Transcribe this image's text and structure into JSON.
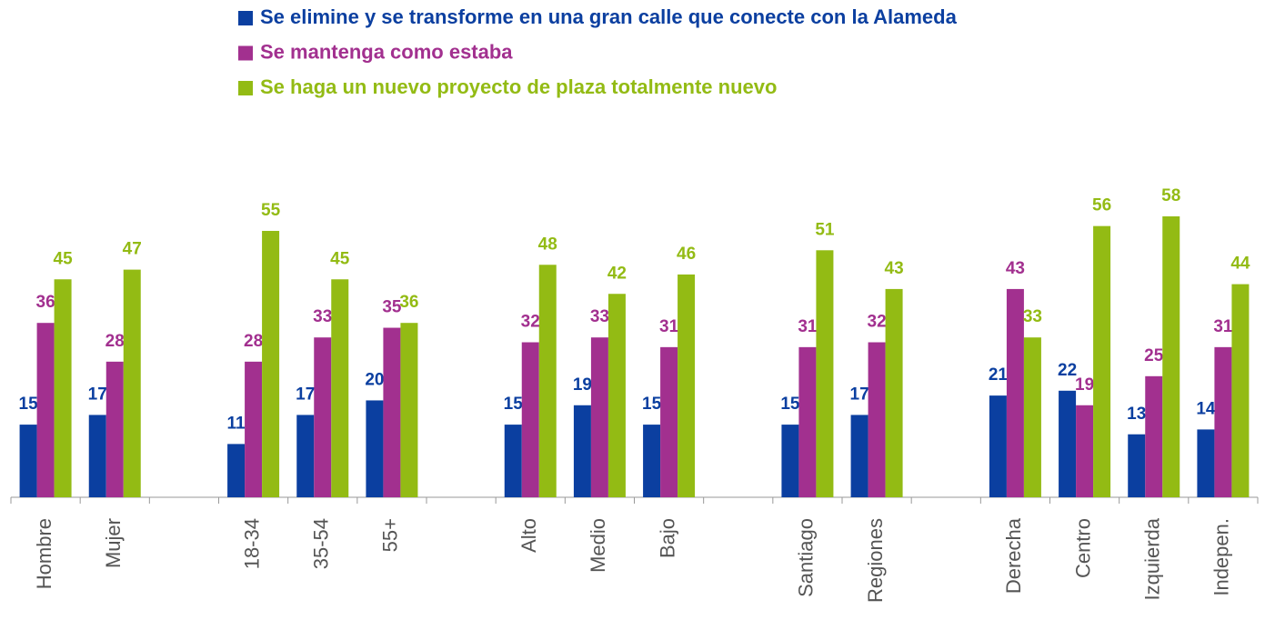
{
  "chart_data": {
    "type": "bar",
    "categories": [
      "Hombre",
      "Mujer",
      null,
      "18-34",
      "35-54",
      "55+",
      null,
      "Alto",
      "Medio",
      "Bajo",
      null,
      "Santiago",
      "Regiones",
      null,
      "Derecha",
      "Centro",
      "Izquierda",
      "Indepen."
    ],
    "series": [
      {
        "name": "Se elimine y se transforme en una gran calle que conecte con la Alameda",
        "color": "#0b3fa0",
        "values": [
          15,
          17,
          null,
          11,
          17,
          20,
          null,
          15,
          19,
          15,
          null,
          15,
          17,
          null,
          21,
          22,
          13,
          14
        ]
      },
      {
        "name": "Se mantenga como estaba",
        "color": "#a2308f",
        "values": [
          36,
          28,
          null,
          28,
          33,
          35,
          null,
          32,
          33,
          31,
          null,
          31,
          32,
          null,
          43,
          19,
          25,
          31
        ]
      },
      {
        "name": "Se haga un nuevo proyecto de plaza totalmente nuevo",
        "color": "#93bb14",
        "values": [
          45,
          47,
          null,
          55,
          45,
          36,
          null,
          48,
          42,
          46,
          null,
          51,
          43,
          null,
          33,
          56,
          58,
          44
        ]
      }
    ],
    "ylim": [
      0,
      58
    ]
  }
}
